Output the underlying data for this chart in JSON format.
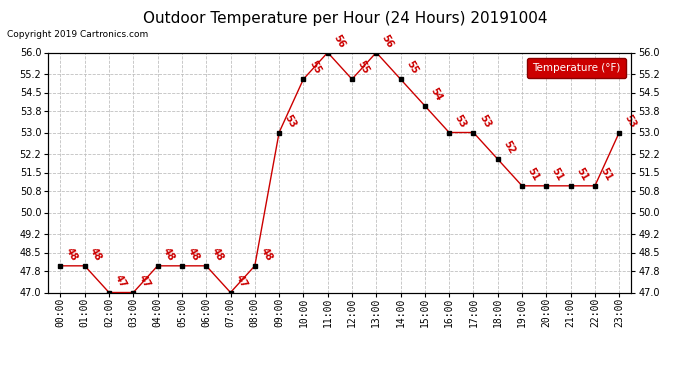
{
  "title": "Outdoor Temperature per Hour (24 Hours) 20191004",
  "copyright": "Copyright 2019 Cartronics.com",
  "legend_label": "Temperature (°F)",
  "hours": [
    0,
    1,
    2,
    3,
    4,
    5,
    6,
    7,
    8,
    9,
    10,
    11,
    12,
    13,
    14,
    15,
    16,
    17,
    18,
    19,
    20,
    21,
    22,
    23
  ],
  "hour_labels": [
    "00:00",
    "01:00",
    "02:00",
    "03:00",
    "04:00",
    "05:00",
    "06:00",
    "07:00",
    "08:00",
    "09:00",
    "10:00",
    "11:00",
    "12:00",
    "13:00",
    "14:00",
    "15:00",
    "16:00",
    "17:00",
    "18:00",
    "19:00",
    "20:00",
    "21:00",
    "22:00",
    "23:00"
  ],
  "temps": [
    48,
    48,
    47,
    47,
    48,
    48,
    48,
    47,
    48,
    53,
    55,
    56,
    55,
    56,
    55,
    54,
    53,
    53,
    52,
    51,
    51,
    51,
    51,
    53
  ],
  "line_color": "#cc0000",
  "marker_color": "#000000",
  "label_color": "#cc0000",
  "bg_color": "#ffffff",
  "grid_color": "#c0c0c0",
  "ylim_min": 47.0,
  "ylim_max": 56.0,
  "yticks": [
    47.0,
    47.8,
    48.5,
    49.2,
    50.0,
    50.8,
    51.5,
    52.2,
    53.0,
    53.8,
    54.5,
    55.2,
    56.0
  ],
  "title_fontsize": 11,
  "tick_fontsize": 7,
  "legend_bg": "#cc0000",
  "legend_text_color": "#ffffff",
  "label_fontsize": 7
}
